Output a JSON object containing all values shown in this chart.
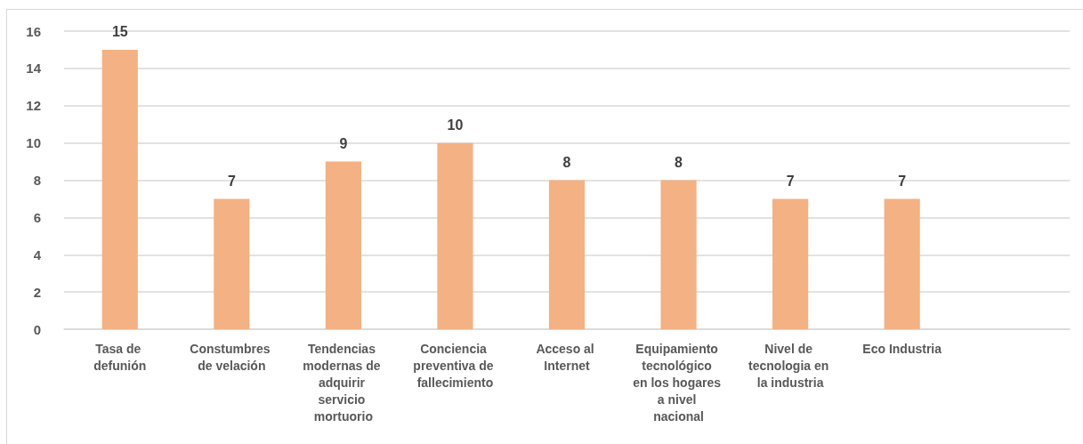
{
  "chart_data": {
    "type": "bar",
    "categories": [
      "Tasa de defunión",
      "Constumbres de velación",
      "Tendencias modernas de adquirir servicio mortuorio",
      "Conciencia preventiva de fallecimiento",
      "Acceso al Internet",
      "Equipamiento tecnológico en los hogares a nivel nacional",
      "Nivel de tecnologia en la industria",
      "Eco Industria",
      null
    ],
    "values": [
      15,
      7,
      9,
      10,
      8,
      8,
      7,
      7,
      null
    ],
    "color": "#f4b183",
    "ylim": [
      0,
      16
    ],
    "yticks": [
      0,
      2,
      4,
      6,
      8,
      10,
      12,
      14,
      16
    ],
    "grid": "y",
    "data_labels": true
  }
}
